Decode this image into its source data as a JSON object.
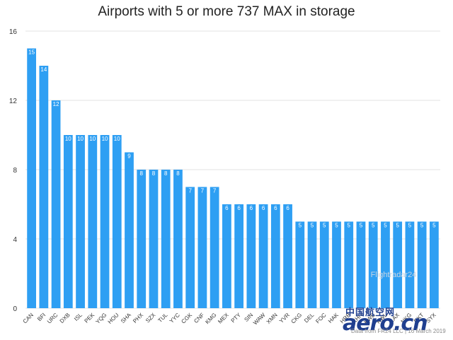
{
  "chart_data": {
    "type": "bar",
    "title": "Airports with 5 or more 737 MAX in storage",
    "xlabel": "",
    "ylabel": "",
    "ylim": [
      0,
      16
    ],
    "yticks": [
      0,
      4,
      8,
      12,
      16
    ],
    "grid": true,
    "bar_color": "#2e9ff3",
    "categories": [
      "CAN",
      "BFI",
      "URC",
      "DXB",
      "ISL",
      "PEK",
      "YQG",
      "HOU",
      "SHA",
      "PHX",
      "SZX",
      "TUL",
      "YYC",
      "CGK",
      "CNF",
      "KMG",
      "MEX",
      "PTY",
      "SIN",
      "WAW",
      "XMN",
      "YVR",
      "CKG",
      "DEL",
      "FOC",
      "HAK",
      "HRB",
      "KHN",
      "KWE",
      "KWL",
      "LAX",
      "NKG",
      "RKT",
      "SYX"
    ],
    "values": [
      15,
      14,
      12,
      10,
      10,
      10,
      10,
      10,
      9,
      8,
      8,
      8,
      8,
      7,
      7,
      7,
      6,
      6,
      6,
      6,
      6,
      6,
      5,
      5,
      5,
      5,
      5,
      5,
      5,
      5,
      5,
      5,
      5,
      5
    ],
    "watermark": "Flightradar24",
    "source_note": "Data from FR24 LLC | 16 March 2019"
  },
  "logo": {
    "chinese": "中国航空网",
    "english": "aero.cn"
  }
}
